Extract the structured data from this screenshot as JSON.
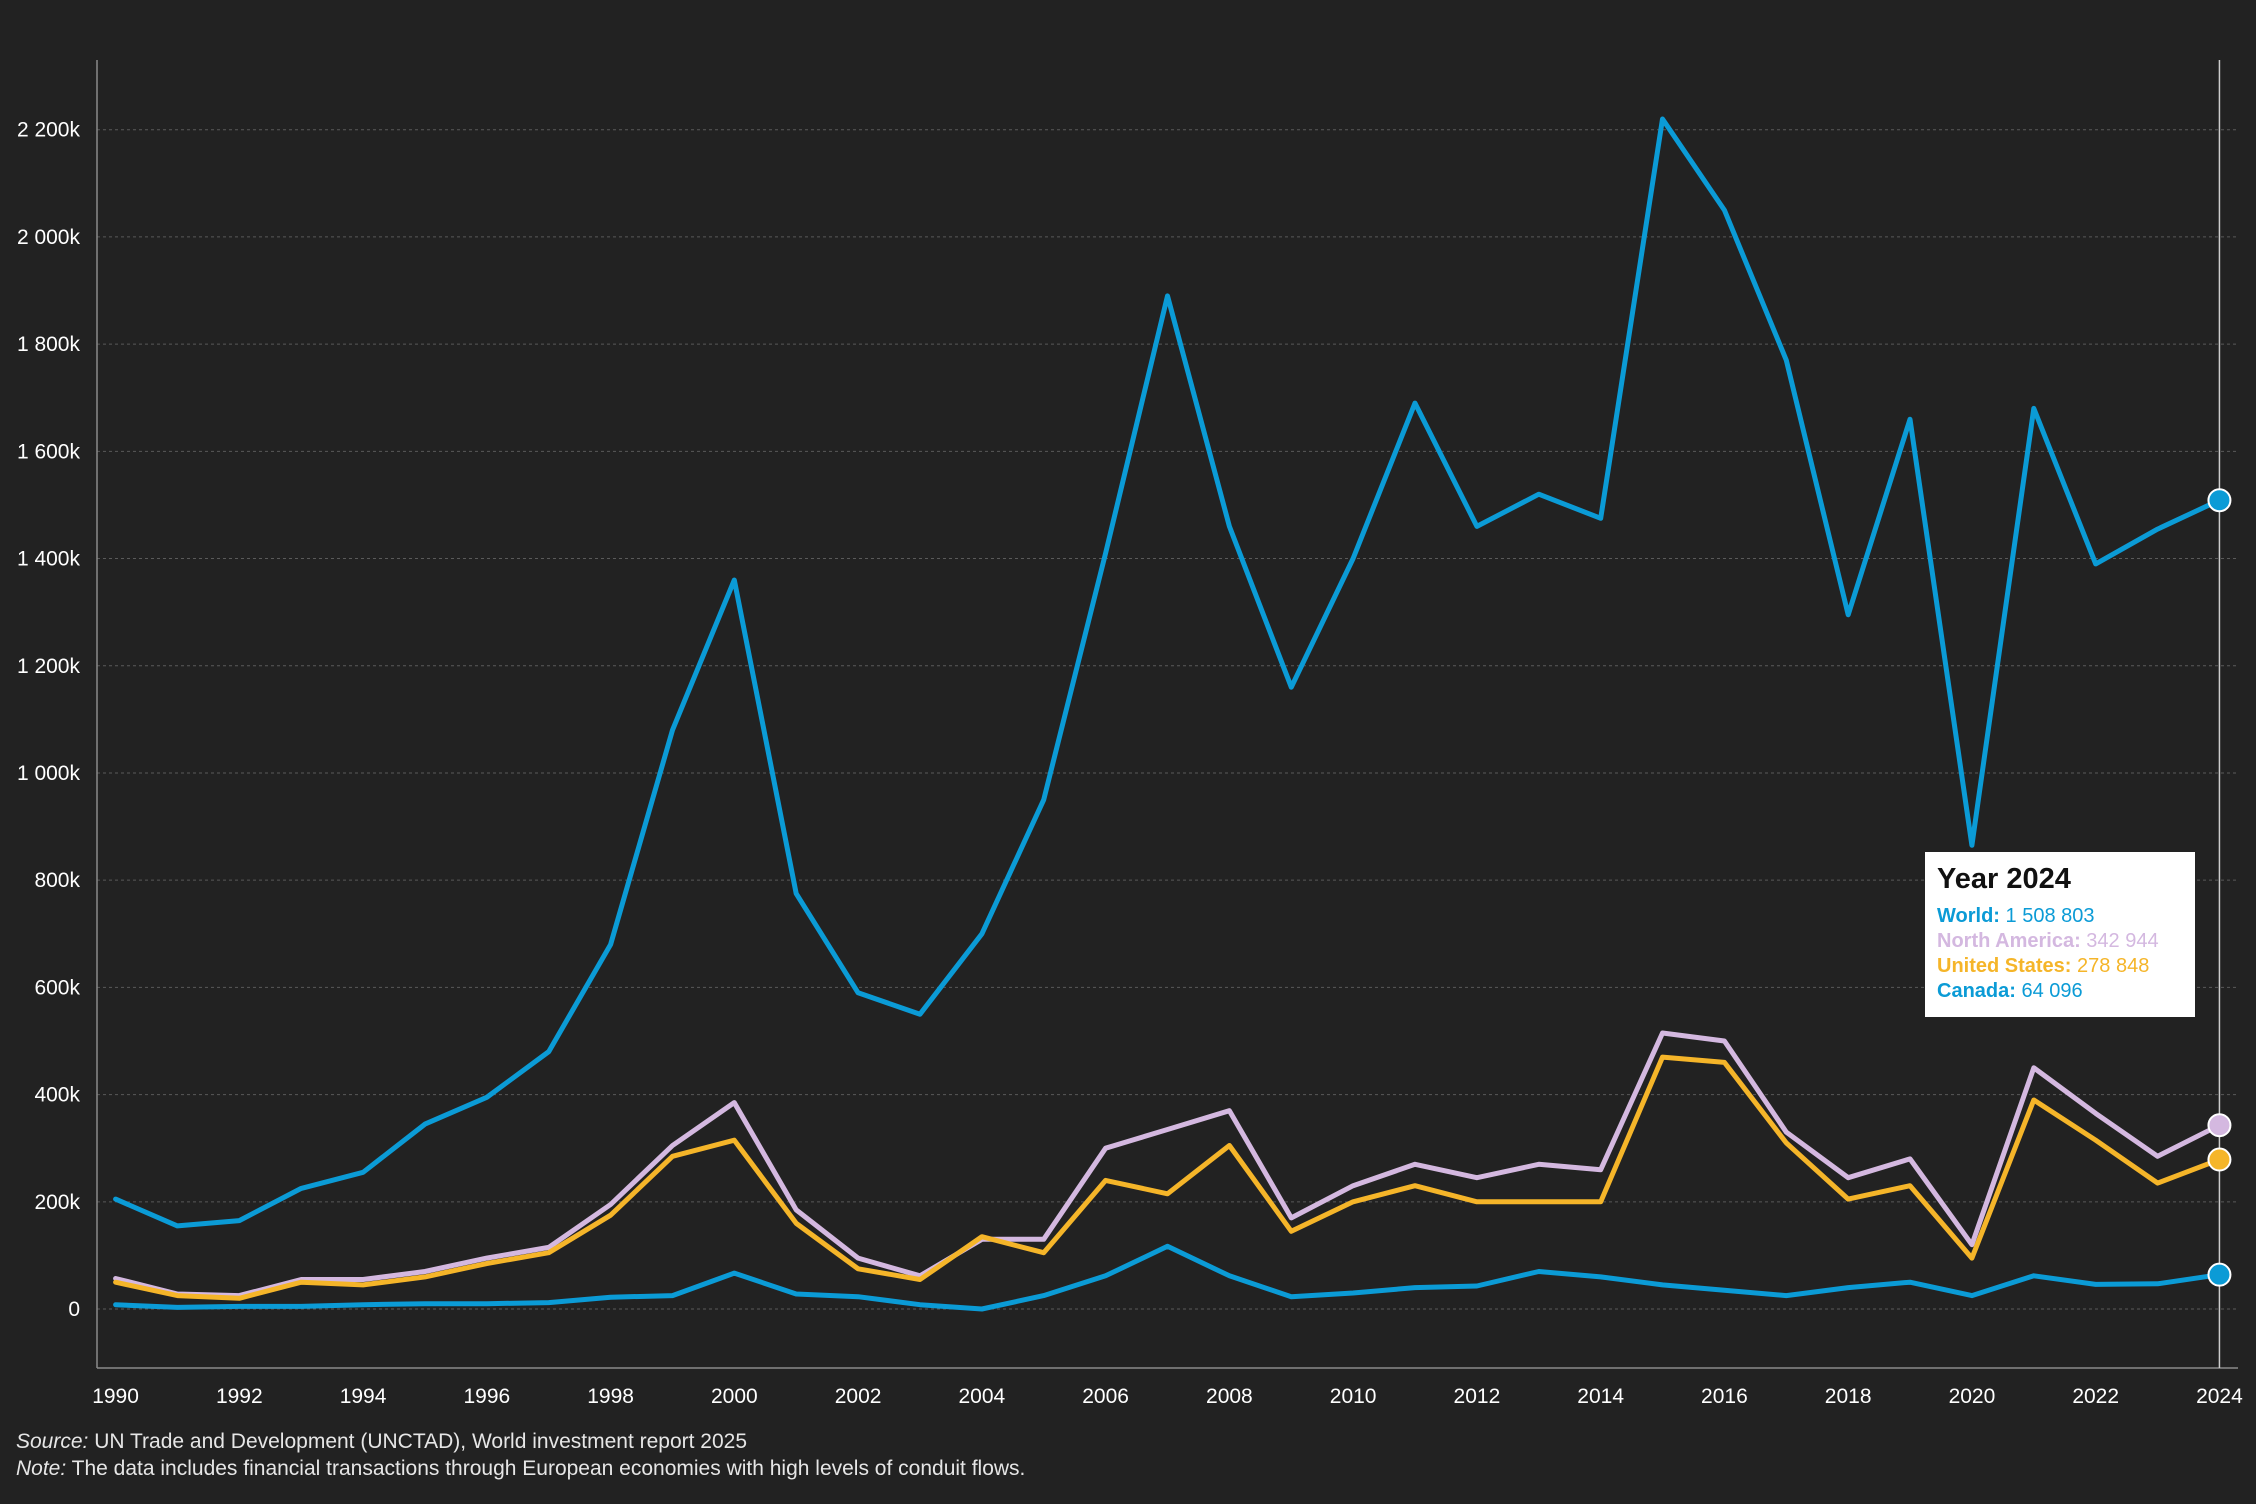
{
  "chart_data": {
    "type": "line",
    "x": [
      1990,
      1991,
      1992,
      1993,
      1994,
      1995,
      1996,
      1997,
      1998,
      1999,
      2000,
      2001,
      2002,
      2003,
      2004,
      2005,
      2006,
      2007,
      2008,
      2009,
      2010,
      2011,
      2012,
      2013,
      2014,
      2015,
      2016,
      2017,
      2018,
      2019,
      2020,
      2021,
      2022,
      2023,
      2024
    ],
    "x_tick_labels": [
      "1990",
      "1992",
      "1994",
      "1996",
      "1998",
      "2000",
      "2002",
      "2004",
      "2006",
      "2008",
      "2010",
      "2012",
      "2014",
      "2016",
      "2018",
      "2020",
      "2022",
      "2024"
    ],
    "y_tick_labels": [
      "0",
      "200k",
      "400k",
      "600k",
      "800k",
      "1 000k",
      "1 200k",
      "1 400k",
      "1 600k",
      "1 800k",
      "2 000k",
      "2 200k"
    ],
    "y_ticks": [
      0,
      200000,
      400000,
      600000,
      800000,
      1000000,
      1200000,
      1400000,
      1600000,
      1800000,
      2000000,
      2200000
    ],
    "ylim": [
      -110000,
      2330000
    ],
    "xlim": [
      1989.7,
      2024.3
    ],
    "grid": true,
    "series": [
      {
        "name": "World",
        "color": "#0b9bd6",
        "values": [
          205000,
          155000,
          165000,
          225000,
          255000,
          345000,
          395000,
          480000,
          680000,
          1080000,
          1360000,
          775000,
          590000,
          550000,
          700000,
          950000,
          1410000,
          1890000,
          1460000,
          1160000,
          1400000,
          1690000,
          1460000,
          1520000,
          1475000,
          2220000,
          2050000,
          1770000,
          1295000,
          1660000,
          865000,
          1680000,
          1390000,
          1455000,
          1508803
        ]
      },
      {
        "name": "North America",
        "color": "#d4b8e0",
        "values": [
          57000,
          28000,
          25000,
          55000,
          55000,
          70000,
          95000,
          115000,
          195000,
          305000,
          385000,
          185000,
          95000,
          62000,
          130000,
          130000,
          300000,
          335000,
          370000,
          170000,
          230000,
          270000,
          245000,
          270000,
          260000,
          515000,
          500000,
          330000,
          245000,
          280000,
          120000,
          450000,
          365000,
          285000,
          342944
        ]
      },
      {
        "name": "United States",
        "color": "#f5b529",
        "values": [
          50000,
          25000,
          20000,
          50000,
          45000,
          60000,
          85000,
          105000,
          175000,
          285000,
          315000,
          160000,
          75000,
          55000,
          135000,
          105000,
          240000,
          215000,
          305000,
          145000,
          200000,
          230000,
          200000,
          200000,
          200000,
          470000,
          460000,
          310000,
          205000,
          230000,
          95000,
          390000,
          315000,
          235000,
          278848
        ]
      },
      {
        "name": "Canada",
        "color": "#0b9bd6",
        "values": [
          8000,
          3000,
          5000,
          5000,
          8000,
          10000,
          10000,
          12000,
          22000,
          25000,
          67000,
          28000,
          23000,
          8000,
          0,
          25000,
          62000,
          117000,
          62000,
          23000,
          30000,
          40000,
          43000,
          70000,
          60000,
          45000,
          35000,
          25000,
          40000,
          50000,
          25000,
          62000,
          46000,
          47000,
          64096
        ]
      }
    ]
  },
  "tooltip": {
    "title": "Year 2024",
    "rows": [
      {
        "label": "World:",
        "value": "1 508 803",
        "color": "#0b9bd6"
      },
      {
        "label": "North America:",
        "value": "342 944",
        "color": "#d4b8e0"
      },
      {
        "label": "United States:",
        "value": "278 848",
        "color": "#f5b529"
      },
      {
        "label": "Canada:",
        "value": "64 096",
        "color": "#0b9bd6"
      }
    ]
  },
  "footer": {
    "source_label": "Source:",
    "source_text": " UN Trade and Development (UNCTAD), World investment report 2025",
    "note_label": "Note:",
    "note_text": " The data includes financial transactions through European economies with high levels of conduit flows."
  }
}
